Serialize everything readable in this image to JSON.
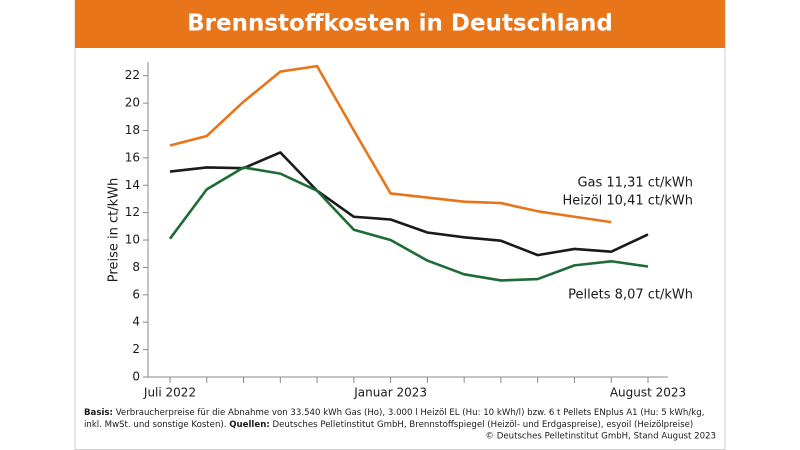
{
  "chart_data": {
    "type": "line",
    "title": "Brennstoffkosten in Deutschland",
    "y_label": "Preise in ct/kWh",
    "categories": [
      "Juli 2022",
      null,
      null,
      null,
      null,
      null,
      "Januar 2023",
      null,
      null,
      null,
      null,
      null,
      null,
      "August 2023"
    ],
    "series": [
      {
        "name": "Gas",
        "color": "#e8751a",
        "values": [
          16.9,
          17.6,
          20.1,
          22.3,
          22.7,
          18.0,
          13.4,
          13.1,
          12.8,
          12.7,
          12.1,
          11.7,
          11.31,
          null
        ]
      },
      {
        "name": "Heizöl",
        "color": "#1a1a1a",
        "values": [
          15.0,
          15.3,
          15.25,
          16.4,
          13.6,
          11.7,
          11.5,
          10.55,
          10.2,
          9.95,
          8.9,
          9.35,
          9.15,
          10.41
        ]
      },
      {
        "name": "Pellets",
        "color": "#1e6b35",
        "values": [
          10.1,
          13.7,
          15.3,
          14.85,
          13.6,
          10.75,
          10.0,
          8.5,
          7.5,
          7.05,
          7.15,
          8.15,
          8.45,
          8.07
        ]
      }
    ],
    "annotations": [
      "Gas 11,31 ct/kWh",
      "Heizöl 10,41 ct/kWh",
      "Pellets 8,07 ct/kWh"
    ],
    "ylim": [
      0,
      23
    ],
    "yticks": [
      0,
      2,
      4,
      6,
      8,
      10,
      12,
      14,
      16,
      18,
      20,
      22
    ],
    "grid": false,
    "footer": {
      "basis_label": "Basis:",
      "basis": [
        "Verbraucherpreise für die Abnahme von 33.540 kWh Gas (Ho), 3.000 l Heizöl EL (Hu: 10 kWh/l) bzw. 6 t Pellets ENplus A1 (Hu: 5 kWh/kg,",
        "inkl. MwSt. und sonstige Kosten)."
      ],
      "sources_label": "Quellen:",
      "sources": "Deutsches Pelletinstitut GmbH, Brennstoffspiegel (Heizöl- und Erdgaspreise), esyoil (Heizölpreise)",
      "copyright": "© Deutsches Pelletinstitut GmbH, Stand August 2023"
    }
  }
}
